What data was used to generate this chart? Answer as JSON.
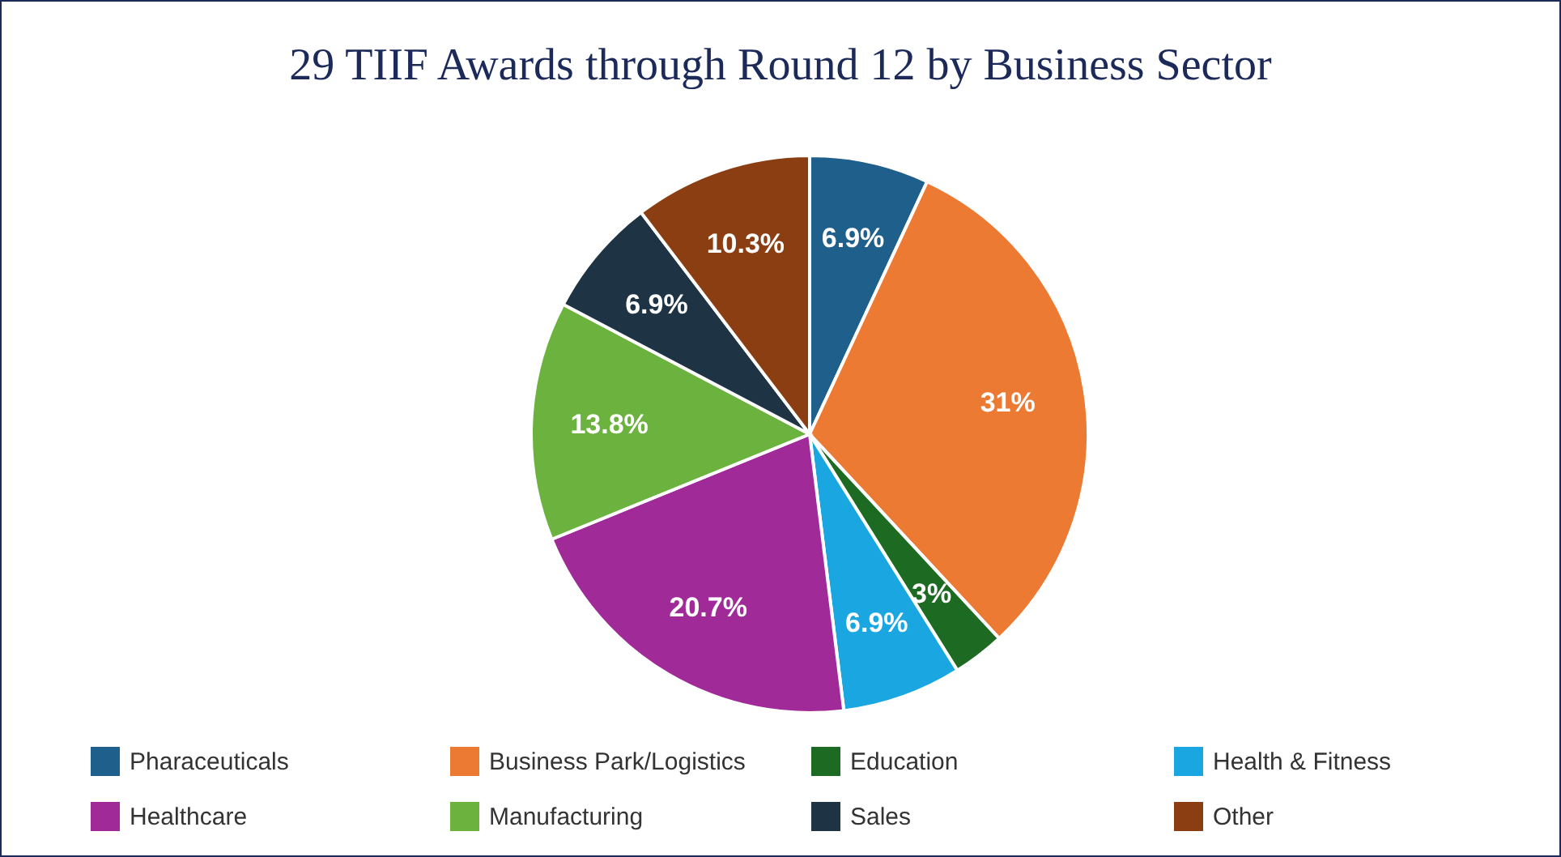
{
  "chart_data": {
    "type": "pie",
    "title": "29 TIIF Awards through Round 12 by Business Sector",
    "categories": [
      "Pharaceuticals",
      "Business Park/Logistics",
      "Education",
      "Health & Fitness",
      "Healthcare",
      "Manufacturing",
      "Sales",
      "Other"
    ],
    "values": [
      6.9,
      31,
      3,
      6.9,
      20.7,
      13.8,
      6.9,
      10.3
    ],
    "colors": [
      "#1f5f8b",
      "#ec7a33",
      "#1d6b22",
      "#1aa6e0",
      "#a02a98",
      "#6bb33e",
      "#1e3445",
      "#8a3e12"
    ],
    "value_labels": [
      "6.9%",
      "31%",
      "3%",
      "6.9%",
      "20.7%",
      "13.8%",
      "6.9%",
      "10.3%"
    ],
    "legend": "bottom"
  }
}
